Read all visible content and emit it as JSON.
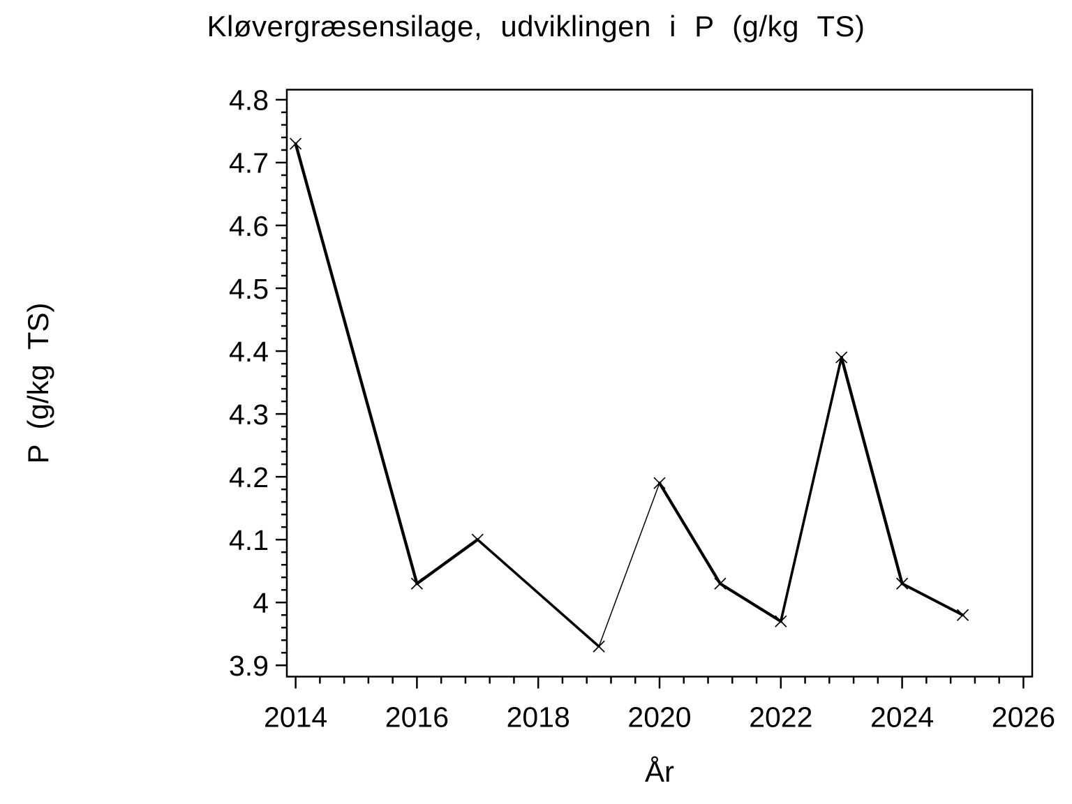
{
  "title": "Kløvergræsensilage, udviklingen i P (g/kg TS)",
  "chart_data": {
    "type": "line",
    "title": "Kløvergræsensilage, udviklingen i P (g/kg TS)",
    "xlabel": "År",
    "ylabel": "P (g/kg TS)",
    "grid": false,
    "legend": false,
    "background_color": "#ffffff",
    "line_color": "#000000",
    "marker": "x",
    "series": [
      {
        "name": "P (g/kg TS)",
        "points": [
          {
            "x": 2014,
            "y": 4.73
          },
          {
            "x": 2016,
            "y": 4.03
          },
          {
            "x": 2017,
            "y": 4.1
          },
          {
            "x": 2019,
            "y": 3.93
          },
          {
            "x": 2020,
            "y": 4.19
          },
          {
            "x": 2021,
            "y": 4.03
          },
          {
            "x": 2022,
            "y": 3.97
          },
          {
            "x": 2023,
            "y": 4.39
          },
          {
            "x": 2024,
            "y": 4.03
          },
          {
            "x": 2025,
            "y": 3.98
          }
        ]
      }
    ],
    "x_axis": {
      "min": 2013.855,
      "max": 2026.145,
      "major_ticks": [
        2014,
        2016,
        2018,
        2020,
        2022,
        2024,
        2026
      ],
      "tick_labels": [
        "2014",
        "2016",
        "2018",
        "2020",
        "2022",
        "2024",
        "2026"
      ],
      "minor_step": 0.4
    },
    "y_axis": {
      "min": 3.882,
      "max": 4.816,
      "major_ticks": [
        3.9,
        4.0,
        4.1,
        4.2,
        4.3,
        4.4,
        4.5,
        4.6,
        4.7,
        4.8
      ],
      "tick_labels": [
        "3.9",
        "4",
        "4.1",
        "4.2",
        "4.3",
        "4.4",
        "4.5",
        "4.6",
        "4.7",
        "4.8"
      ],
      "minor_step": 0.02
    }
  }
}
